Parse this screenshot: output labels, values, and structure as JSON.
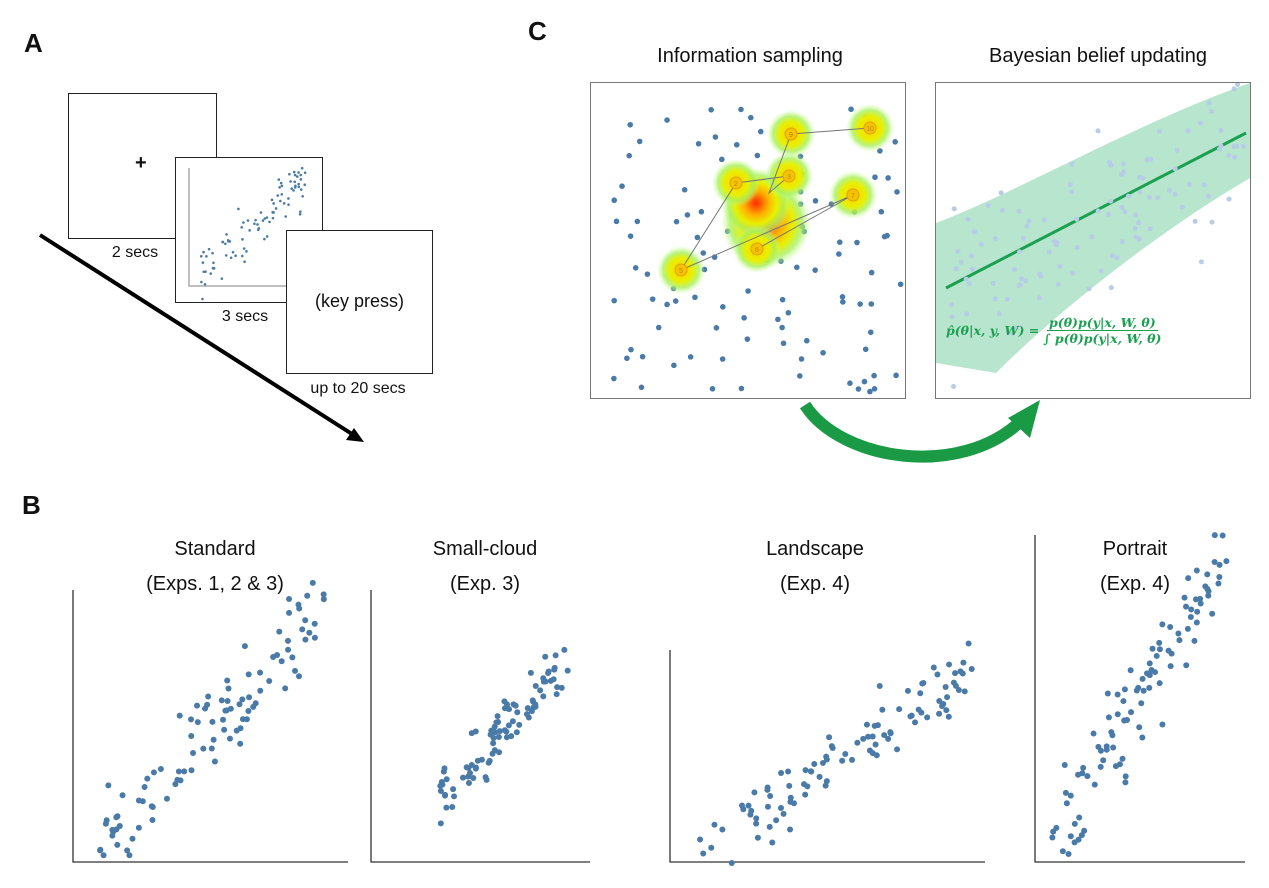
{
  "panels": {
    "a": "A",
    "b": "B",
    "c": "C"
  },
  "panel_a": {
    "fixation": "+",
    "stimulus_duration_1": "2 secs",
    "stimulus_duration_2": "3 secs",
    "response_label": "(key press)",
    "response_duration": "up to 20 secs"
  },
  "panel_b": {
    "plots": [
      {
        "title_line1": "Standard",
        "title_line2": "(Exps. 1, 2 & 3)"
      },
      {
        "title_line1": "Small-cloud",
        "title_line2": "(Exp. 3)"
      },
      {
        "title_line1": "Landscape",
        "title_line2": "(Exp. 4)"
      },
      {
        "title_line1": "Portrait",
        "title_line2": "(Exp. 4)"
      }
    ]
  },
  "panel_c": {
    "left_title": "Information sampling",
    "right_title": "Bayesian belief updating",
    "formula_lhs": "p̂(θ|x, y, W) =",
    "formula_num": "p(θ)p(y|x, W, θ)",
    "formula_den": "∫ p(θ)p(y|x, W, θ)",
    "fixation_labels": [
      "2",
      "3",
      "5",
      "6",
      "7",
      "9",
      "10"
    ]
  },
  "colors": {
    "dots": "#4a7aa7",
    "green": "#1aa050",
    "band": "#9fdcbd"
  }
}
